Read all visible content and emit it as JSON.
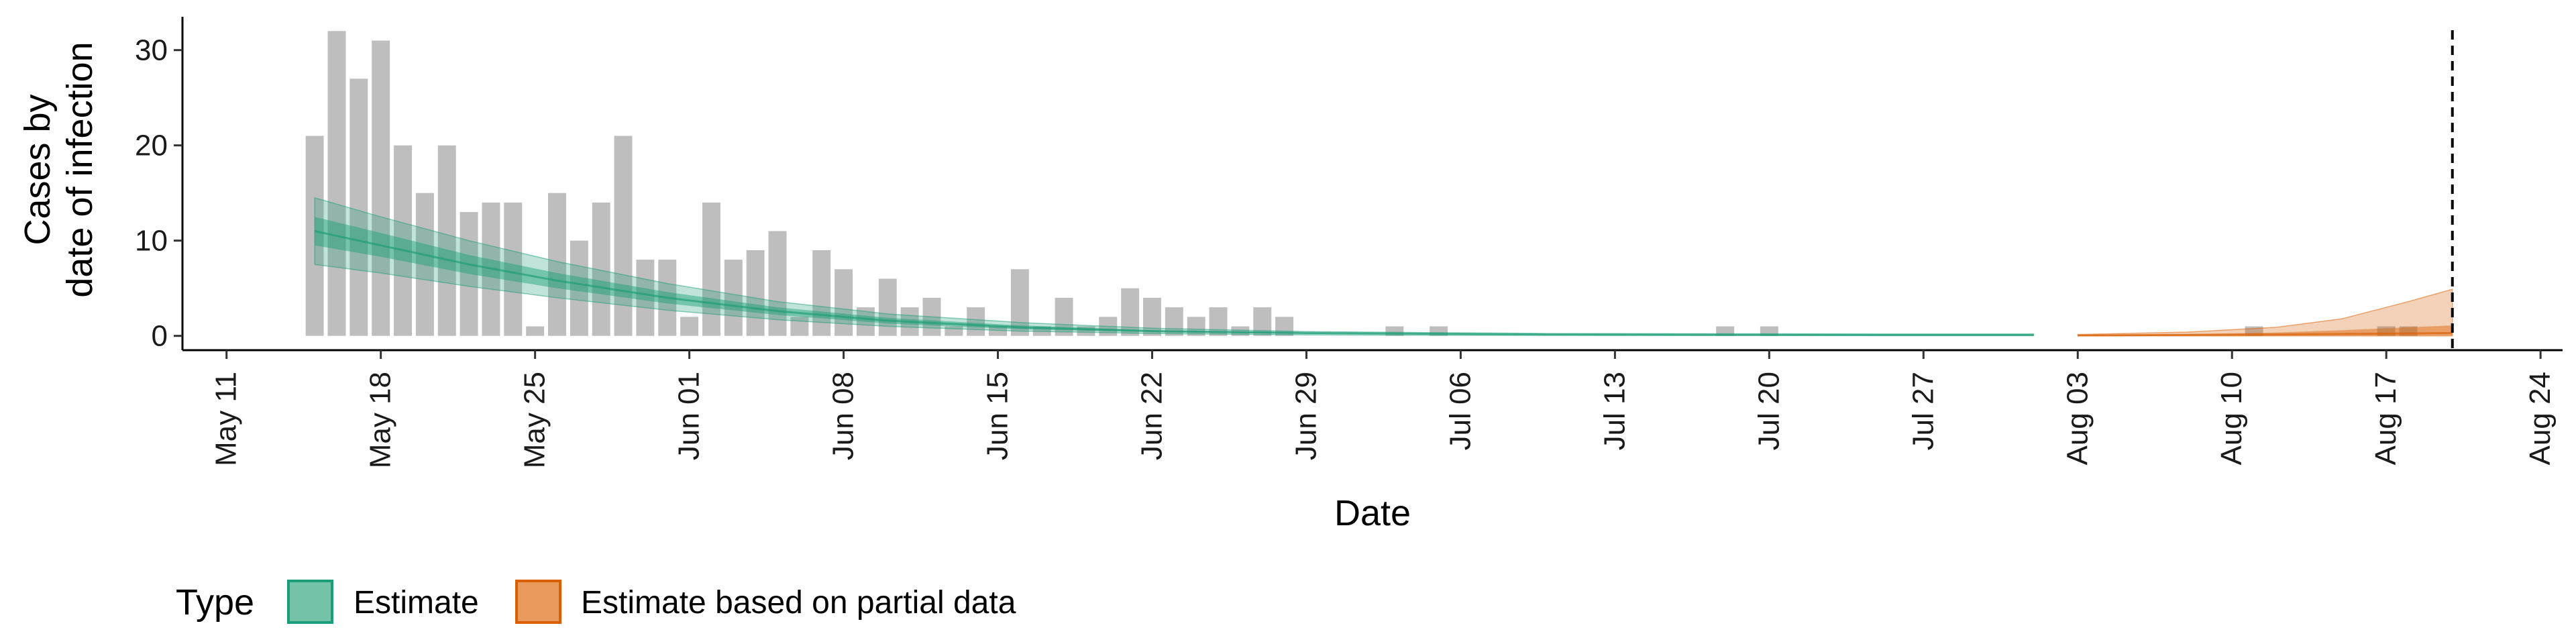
{
  "chart_data": {
    "type": "bar",
    "xlabel": "Date",
    "ylabel_lines": [
      "Cases by",
      "date of infection"
    ],
    "y_ticks": [
      0,
      10,
      20,
      30
    ],
    "ylim": [
      -1.5,
      33.5
    ],
    "x_range": [
      "2020-05-09",
      "2020-08-25"
    ],
    "x_ticks": [
      {
        "date": "2020-05-11",
        "label": "May 11"
      },
      {
        "date": "2020-05-18",
        "label": "May 18"
      },
      {
        "date": "2020-05-25",
        "label": "May 25"
      },
      {
        "date": "2020-06-01",
        "label": "Jun 01"
      },
      {
        "date": "2020-06-08",
        "label": "Jun 08"
      },
      {
        "date": "2020-06-15",
        "label": "Jun 15"
      },
      {
        "date": "2020-06-22",
        "label": "Jun 22"
      },
      {
        "date": "2020-06-29",
        "label": "Jun 29"
      },
      {
        "date": "2020-07-06",
        "label": "Jul 06"
      },
      {
        "date": "2020-07-13",
        "label": "Jul 13"
      },
      {
        "date": "2020-07-20",
        "label": "Jul 20"
      },
      {
        "date": "2020-07-27",
        "label": "Jul 27"
      },
      {
        "date": "2020-08-03",
        "label": "Aug 03"
      },
      {
        "date": "2020-08-10",
        "label": "Aug 10"
      },
      {
        "date": "2020-08-17",
        "label": "Aug 17"
      },
      {
        "date": "2020-08-24",
        "label": "Aug 24"
      }
    ],
    "cases": [
      {
        "date": "2020-05-15",
        "value": 21
      },
      {
        "date": "2020-05-16",
        "value": 32
      },
      {
        "date": "2020-05-17",
        "value": 27
      },
      {
        "date": "2020-05-18",
        "value": 31
      },
      {
        "date": "2020-05-19",
        "value": 20
      },
      {
        "date": "2020-05-20",
        "value": 15
      },
      {
        "date": "2020-05-21",
        "value": 20
      },
      {
        "date": "2020-05-22",
        "value": 13
      },
      {
        "date": "2020-05-23",
        "value": 14
      },
      {
        "date": "2020-05-24",
        "value": 14
      },
      {
        "date": "2020-05-25",
        "value": 1
      },
      {
        "date": "2020-05-26",
        "value": 15
      },
      {
        "date": "2020-05-27",
        "value": 10
      },
      {
        "date": "2020-05-28",
        "value": 14
      },
      {
        "date": "2020-05-29",
        "value": 21
      },
      {
        "date": "2020-05-30",
        "value": 8
      },
      {
        "date": "2020-05-31",
        "value": 8
      },
      {
        "date": "2020-06-01",
        "value": 2
      },
      {
        "date": "2020-06-02",
        "value": 14
      },
      {
        "date": "2020-06-03",
        "value": 8
      },
      {
        "date": "2020-06-04",
        "value": 9
      },
      {
        "date": "2020-06-05",
        "value": 11
      },
      {
        "date": "2020-06-06",
        "value": 2
      },
      {
        "date": "2020-06-07",
        "value": 9
      },
      {
        "date": "2020-06-08",
        "value": 7
      },
      {
        "date": "2020-06-09",
        "value": 3
      },
      {
        "date": "2020-06-10",
        "value": 6
      },
      {
        "date": "2020-06-11",
        "value": 3
      },
      {
        "date": "2020-06-12",
        "value": 4
      },
      {
        "date": "2020-06-13",
        "value": 1
      },
      {
        "date": "2020-06-14",
        "value": 3
      },
      {
        "date": "2020-06-15",
        "value": 1
      },
      {
        "date": "2020-06-16",
        "value": 7
      },
      {
        "date": "2020-06-17",
        "value": 1
      },
      {
        "date": "2020-06-18",
        "value": 4
      },
      {
        "date": "2020-06-19",
        "value": 1
      },
      {
        "date": "2020-06-20",
        "value": 2
      },
      {
        "date": "2020-06-21",
        "value": 5
      },
      {
        "date": "2020-06-22",
        "value": 4
      },
      {
        "date": "2020-06-23",
        "value": 3
      },
      {
        "date": "2020-06-24",
        "value": 2
      },
      {
        "date": "2020-06-25",
        "value": 3
      },
      {
        "date": "2020-06-26",
        "value": 1
      },
      {
        "date": "2020-06-27",
        "value": 3
      },
      {
        "date": "2020-06-28",
        "value": 2
      },
      {
        "date": "2020-07-03",
        "value": 1
      },
      {
        "date": "2020-07-05",
        "value": 1
      },
      {
        "date": "2020-07-18",
        "value": 1
      },
      {
        "date": "2020-07-20",
        "value": 1
      },
      {
        "date": "2020-08-11",
        "value": 1
      },
      {
        "date": "2020-08-17",
        "value": 1
      },
      {
        "date": "2020-08-18",
        "value": 1
      }
    ],
    "series": [
      {
        "name": "Estimate",
        "color": "#1b9e77",
        "points": [
          {
            "date": "2020-05-15",
            "median": 11,
            "lower_50": 9.5,
            "upper_50": 12.5,
            "lower_90": 7.5,
            "upper_90": 14.5
          },
          {
            "date": "2020-05-18",
            "median": 9.5,
            "lower_50": 8.3,
            "upper_50": 10.8,
            "lower_90": 6.6,
            "upper_90": 12.5
          },
          {
            "date": "2020-05-22",
            "median": 7.5,
            "lower_50": 6.5,
            "upper_50": 8.5,
            "lower_90": 5.2,
            "upper_90": 10.0
          },
          {
            "date": "2020-05-26",
            "median": 5.8,
            "lower_50": 5.0,
            "upper_50": 6.6,
            "lower_90": 4.0,
            "upper_90": 7.8
          },
          {
            "date": "2020-05-31",
            "median": 4.0,
            "lower_50": 3.4,
            "upper_50": 4.6,
            "lower_90": 2.7,
            "upper_90": 5.5
          },
          {
            "date": "2020-06-05",
            "median": 2.6,
            "lower_50": 2.2,
            "upper_50": 3.0,
            "lower_90": 1.7,
            "upper_90": 3.6
          },
          {
            "date": "2020-06-10",
            "median": 1.6,
            "lower_50": 1.3,
            "upper_50": 1.9,
            "lower_90": 1.0,
            "upper_90": 2.3
          },
          {
            "date": "2020-06-16",
            "median": 0.9,
            "lower_50": 0.7,
            "upper_50": 1.1,
            "lower_90": 0.5,
            "upper_90": 1.4
          },
          {
            "date": "2020-06-22",
            "median": 0.5,
            "lower_50": 0.4,
            "upper_50": 0.6,
            "lower_90": 0.25,
            "upper_90": 0.8
          },
          {
            "date": "2020-06-29",
            "median": 0.3,
            "lower_50": 0.2,
            "upper_50": 0.35,
            "lower_90": 0.1,
            "upper_90": 0.45
          },
          {
            "date": "2020-07-10",
            "median": 0.15,
            "lower_50": 0.1,
            "upper_50": 0.2,
            "lower_90": 0.05,
            "upper_90": 0.25
          },
          {
            "date": "2020-07-25",
            "median": 0.1,
            "lower_50": 0.05,
            "upper_50": 0.15,
            "lower_90": 0.02,
            "upper_90": 0.2
          },
          {
            "date": "2020-08-01",
            "median": 0.1,
            "lower_50": 0.05,
            "upper_50": 0.15,
            "lower_90": 0.02,
            "upper_90": 0.2
          }
        ]
      },
      {
        "name": "Estimate based on partial data",
        "color": "#d95f02",
        "points": [
          {
            "date": "2020-08-03",
            "median": 0.05,
            "lower_50": 0.02,
            "upper_50": 0.1,
            "lower_90": 0.0,
            "upper_90": 0.15
          },
          {
            "date": "2020-08-08",
            "median": 0.1,
            "lower_50": 0.03,
            "upper_50": 0.2,
            "lower_90": 0.0,
            "upper_90": 0.4
          },
          {
            "date": "2020-08-12",
            "median": 0.15,
            "lower_50": 0.05,
            "upper_50": 0.35,
            "lower_90": 0.0,
            "upper_90": 0.9
          },
          {
            "date": "2020-08-15",
            "median": 0.2,
            "lower_50": 0.05,
            "upper_50": 0.6,
            "lower_90": 0.0,
            "upper_90": 1.8
          },
          {
            "date": "2020-08-18",
            "median": 0.25,
            "lower_50": 0.05,
            "upper_50": 0.9,
            "lower_90": 0.0,
            "upper_90": 3.6
          },
          {
            "date": "2020-08-20",
            "median": 0.3,
            "lower_50": 0.05,
            "upper_50": 1.1,
            "lower_90": 0.0,
            "upper_90": 4.9
          }
        ]
      }
    ],
    "vline_date": "2020-08-20",
    "legend": {
      "title": "Type",
      "position": "bottom-left",
      "items": [
        {
          "label": "Estimate",
          "fill": "#74c3a8",
          "stroke": "#1b9e77"
        },
        {
          "label": "Estimate based on partial data",
          "fill": "#eb9a5e",
          "stroke": "#d95f02"
        }
      ]
    },
    "bar_color": "#bebebe"
  }
}
